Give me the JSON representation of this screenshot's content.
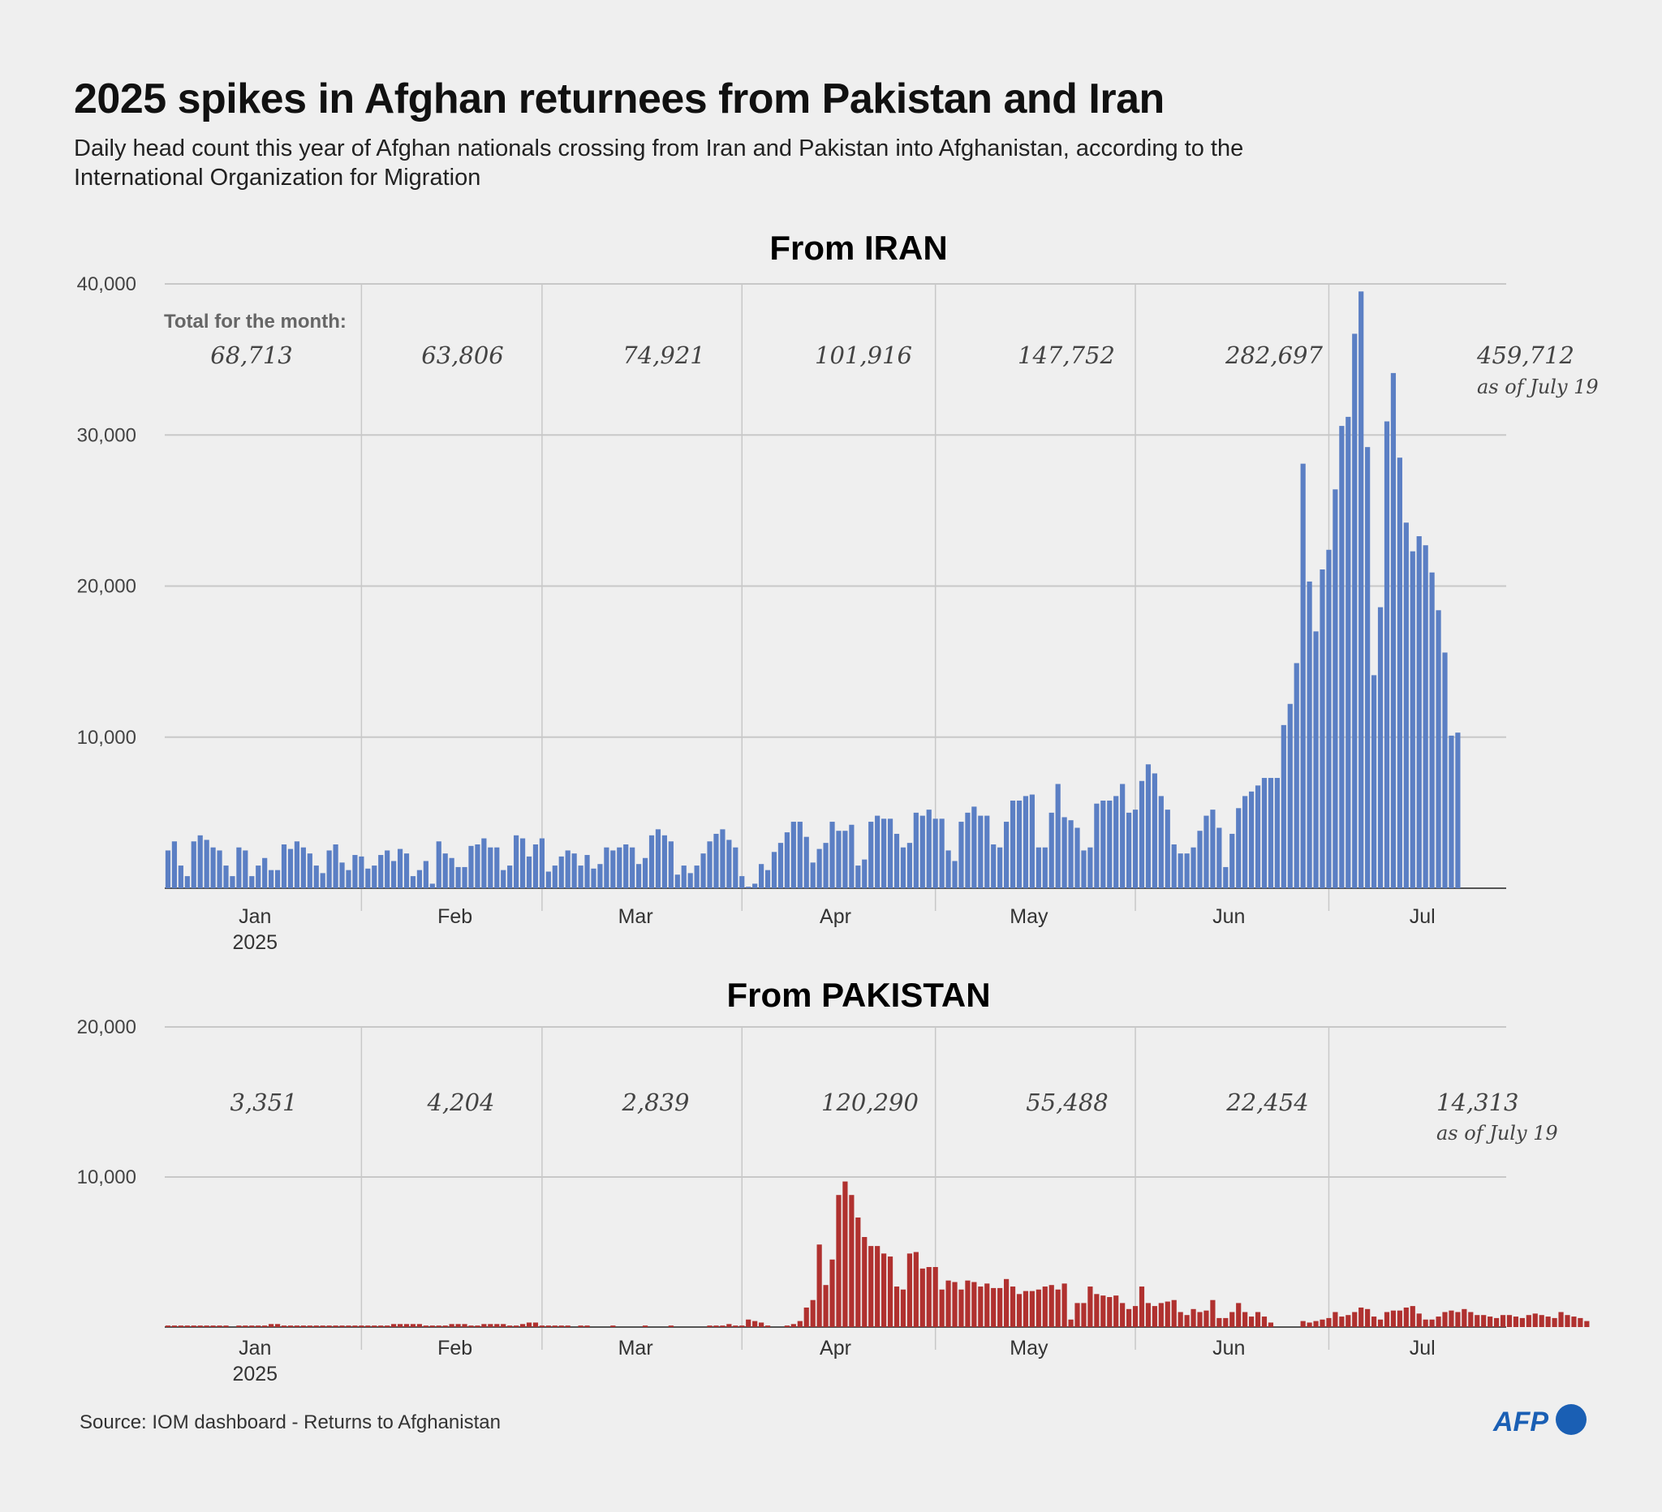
{
  "title": "2025 spikes in Afghan returnees from Pakistan and Iran",
  "subtitle": "Daily head count this year of Afghan nationals crossing from Iran and Pakistan into Afghanistan, according to the International Organization for Migration",
  "source": "Source: IOM dashboard - Returns to Afghanistan",
  "logo_text": "AFP",
  "colors": {
    "iran": "#5b7fc4",
    "pakistan": "#b0312f",
    "logo": "#1a5fb4",
    "grid": "#c8c8c8",
    "axis": "#555555"
  },
  "chart_data": [
    {
      "type": "bar",
      "title": "From IRAN",
      "ylim": [
        0,
        40000
      ],
      "yticks": [
        10000,
        20000,
        30000,
        40000
      ],
      "ytick_labels": [
        "10,000",
        "20,000",
        "30,000",
        "40,000"
      ],
      "x_start": "2025-01-01",
      "x_end": "2025-07-19",
      "months": [
        "Jan",
        "Feb",
        "Mar",
        "Apr",
        "May",
        "Jun",
        "Jul"
      ],
      "year_label": "2025",
      "totals_label": "Total for the month:",
      "monthly_totals": [
        "68,713",
        "63,806",
        "74,921",
        "101,916",
        "147,752",
        "282,697",
        "459,712"
      ],
      "last_note": "as of July 19",
      "grid": true,
      "values": [
        2500,
        3100,
        1500,
        800,
        3100,
        3500,
        3200,
        2700,
        2500,
        1500,
        800,
        2700,
        2500,
        800,
        1500,
        2000,
        1200,
        1200,
        2900,
        2600,
        3100,
        2700,
        2300,
        1500,
        1000,
        2500,
        2900,
        1700,
        1200,
        2200,
        2100,
        1300,
        1500,
        2200,
        2500,
        1800,
        2600,
        2300,
        800,
        1200,
        1800,
        300,
        3100,
        2300,
        2000,
        1400,
        1400,
        2800,
        2900,
        3300,
        2700,
        2700,
        1200,
        1500,
        3500,
        3300,
        2100,
        2900,
        3300,
        1100,
        1500,
        2100,
        2500,
        2300,
        1500,
        2200,
        1300,
        1600,
        2700,
        2500,
        2700,
        2900,
        2700,
        1600,
        2000,
        3500,
        3900,
        3500,
        3100,
        900,
        1500,
        1000,
        1500,
        2300,
        3100,
        3600,
        3900,
        3200,
        2700,
        800,
        100,
        300,
        1600,
        1200,
        2400,
        3000,
        3700,
        4400,
        4400,
        3400,
        1700,
        2600,
        3000,
        4400,
        3800,
        3800,
        4200,
        1500,
        1900,
        4400,
        4800,
        4600,
        4600,
        3600,
        2700,
        3000,
        5000,
        4800,
        5200,
        4600,
        4600,
        2500,
        1800,
        4400,
        5000,
        5400,
        4800,
        4800,
        2900,
        2700,
        4400,
        5800,
        5800,
        6100,
        6200,
        2700,
        2700,
        5000,
        6900,
        4700,
        4500,
        4000,
        2500,
        2700,
        5600,
        5800,
        5800,
        6100,
        6900,
        5000,
        5200,
        7100,
        8200,
        7600,
        6100,
        5200,
        2900,
        2300,
        2300,
        2700,
        3800,
        4800,
        5200,
        4000,
        1400,
        3600,
        5300,
        6100,
        6400,
        6800,
        7300,
        7300,
        7300,
        10800,
        12200,
        14900,
        28100,
        20300,
        17000,
        21100,
        22400,
        26400,
        30600,
        31200,
        36700,
        39500,
        29200,
        14100,
        18600,
        30900,
        34100,
        28500,
        24200,
        22300,
        23300,
        22700,
        20900,
        18400,
        15600,
        10100,
        10300
      ]
    },
    {
      "type": "bar",
      "title": "From PAKISTAN",
      "ylim": [
        0,
        20000
      ],
      "yticks": [
        10000,
        20000
      ],
      "ytick_labels": [
        "10,000",
        "20,000"
      ],
      "x_start": "2025-01-01",
      "x_end": "2025-07-19",
      "months": [
        "Jan",
        "Feb",
        "Mar",
        "Apr",
        "May",
        "Jun",
        "Jul"
      ],
      "year_label": "2025",
      "monthly_totals": [
        "3,351",
        "4,204",
        "2,839",
        "120,290",
        "55,488",
        "22,454",
        "14,313"
      ],
      "last_note": "as of July 19",
      "grid": true,
      "values": [
        100,
        100,
        100,
        100,
        100,
        100,
        100,
        100,
        100,
        100,
        0,
        100,
        100,
        100,
        100,
        100,
        200,
        200,
        100,
        100,
        100,
        100,
        100,
        100,
        100,
        100,
        100,
        100,
        100,
        100,
        100,
        100,
        100,
        100,
        100,
        200,
        200,
        200,
        200,
        200,
        100,
        100,
        100,
        100,
        200,
        200,
        200,
        100,
        100,
        200,
        200,
        200,
        200,
        100,
        100,
        200,
        300,
        300,
        100,
        100,
        100,
        100,
        100,
        0,
        100,
        100,
        0,
        0,
        0,
        100,
        0,
        0,
        0,
        0,
        100,
        0,
        0,
        0,
        100,
        0,
        0,
        0,
        0,
        0,
        100,
        100,
        100,
        200,
        100,
        100,
        500,
        400,
        300,
        100,
        0,
        0,
        100,
        200,
        400,
        1300,
        1800,
        5500,
        2800,
        4500,
        8800,
        9700,
        8800,
        7300,
        6000,
        5400,
        5400,
        4900,
        4700,
        2700,
        2500,
        4900,
        5000,
        3900,
        4000,
        4000,
        2500,
        3100,
        3000,
        2500,
        3100,
        3000,
        2700,
        2900,
        2600,
        2600,
        3200,
        2700,
        2200,
        2400,
        2400,
        2500,
        2700,
        2800,
        2500,
        2900,
        500,
        1600,
        1600,
        2700,
        2200,
        2100,
        2000,
        2100,
        1600,
        1200,
        1400,
        2700,
        1600,
        1400,
        1600,
        1700,
        1800,
        1000,
        800,
        1200,
        1000,
        1100,
        1800,
        600,
        600,
        1000,
        1600,
        1000,
        700,
        1000,
        700,
        300,
        0,
        0,
        0,
        0,
        400,
        300,
        400,
        500,
        600,
        1000,
        700,
        800,
        1000,
        1300,
        1200,
        700,
        500,
        1000,
        1100,
        1100,
        1300,
        1400,
        900,
        500,
        500,
        700,
        1000,
        1100,
        1000,
        1200,
        1000,
        800,
        800,
        700,
        600,
        800,
        800,
        700,
        600,
        800,
        900,
        800,
        700,
        600,
        1000,
        800,
        700,
        600,
        400
      ]
    }
  ]
}
